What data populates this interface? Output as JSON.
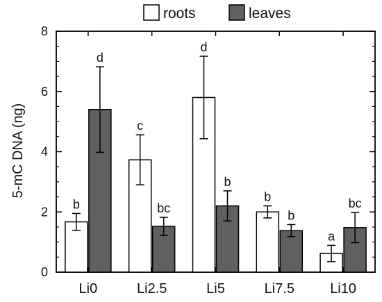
{
  "chart_data": {
    "type": "bar",
    "title": "",
    "xlabel": "",
    "ylabel": "5-mC DNA (ng)",
    "ylim": [
      0,
      8
    ],
    "yticks": [
      0,
      2,
      4,
      6,
      8
    ],
    "categories": [
      "Li0",
      "Li2.5",
      "Li5",
      "Li7.5",
      "Li10"
    ],
    "legend_position": "top",
    "grid": false,
    "series": [
      {
        "name": "roots",
        "color": "#ffffff",
        "values": [
          1.67,
          3.73,
          5.8,
          2.0,
          0.62
        ],
        "errors": [
          0.28,
          0.83,
          1.37,
          0.2,
          0.27
        ],
        "labels": [
          "b",
          "c",
          "d",
          "b",
          "a"
        ]
      },
      {
        "name": "leaves",
        "color": "#606060",
        "values": [
          5.4,
          1.52,
          2.2,
          1.38,
          1.48
        ],
        "errors": [
          1.42,
          0.3,
          0.5,
          0.2,
          0.5
        ],
        "labels": [
          "d",
          "bc",
          "b",
          "b",
          "bc"
        ]
      }
    ]
  }
}
